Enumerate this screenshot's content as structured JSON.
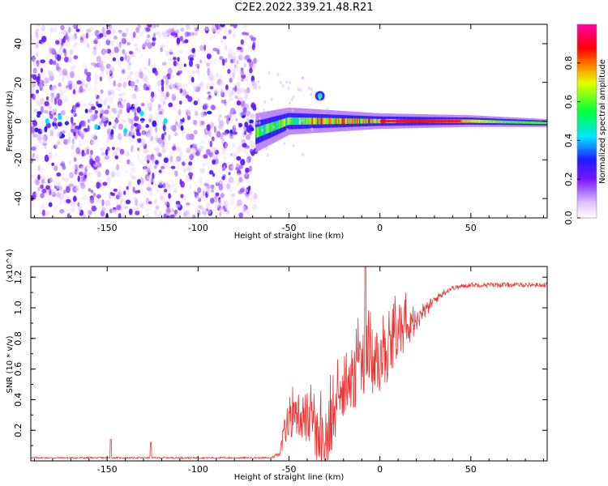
{
  "title": "C2E2.2022.339.21.48.R21",
  "chart_data": [
    {
      "type": "heatmap",
      "xlabel": "Height of straight line (km)",
      "ylabel": "Frequency (Hz)",
      "xlim": [
        -192,
        92
      ],
      "ylim": [
        -50,
        50
      ],
      "xticks": [
        -150,
        -100,
        -50,
        0,
        50
      ],
      "yticks": [
        -40,
        -20,
        0,
        20,
        40
      ],
      "colorbar": {
        "label": "Normalized spectral amplitude",
        "range": [
          0.0,
          1.0
        ],
        "ticks": [
          0.0,
          0.2,
          0.4,
          0.6,
          0.8
        ],
        "colormap": "rainbow (white-violet-blue-cyan-green-yellow-red-magenta)"
      },
      "structure": {
        "noisy_region_x": [
          -192,
          -68
        ],
        "central_band_center_hz": [
          [
            -68,
            -6
          ],
          [
            -50,
            0
          ],
          [
            -30,
            0
          ],
          [
            0,
            0
          ],
          [
            50,
            0
          ],
          [
            92,
            -1
          ]
        ],
        "central_band_halfwidth_hz": [
          [
            -68,
            10
          ],
          [
            -50,
            7
          ],
          [
            0,
            4
          ],
          [
            50,
            3
          ],
          [
            92,
            2
          ]
        ],
        "side_blob": {
          "x": -33,
          "y": 13
        }
      }
    },
    {
      "type": "line",
      "xlabel": "Height of straight line (km)",
      "ylabel": "SNR (10 * v/v)",
      "y_multiplier": "(x10^4)",
      "xlim": [
        -192,
        92
      ],
      "ylim": [
        0,
        1.27
      ],
      "xticks": [
        -150,
        -100,
        -50,
        0,
        50
      ],
      "yticks": [
        0.2,
        0.4,
        0.6,
        0.8,
        1.0,
        1.2
      ],
      "color": "#ee3333",
      "envelope_baseline": [
        [
          -192,
          0.02
        ],
        [
          -60,
          0.02
        ],
        [
          -55,
          0.05
        ],
        [
          -50,
          0.25
        ],
        [
          -45,
          0.3
        ],
        [
          -40,
          0.28
        ],
        [
          -35,
          0.15
        ],
        [
          -30,
          0.1
        ],
        [
          -25,
          0.25
        ],
        [
          -20,
          0.4
        ],
        [
          -15,
          0.5
        ],
        [
          -10,
          0.55
        ],
        [
          -5,
          0.6
        ],
        [
          0,
          0.65
        ],
        [
          5,
          0.7
        ],
        [
          10,
          0.78
        ],
        [
          15,
          0.85
        ],
        [
          20,
          0.92
        ],
        [
          25,
          0.98
        ],
        [
          30,
          1.05
        ],
        [
          35,
          1.1
        ],
        [
          40,
          1.13
        ],
        [
          50,
          1.15
        ],
        [
          92,
          1.15
        ]
      ],
      "envelope_spread": [
        [
          -192,
          0.01
        ],
        [
          -60,
          0.01
        ],
        [
          -55,
          0.04
        ],
        [
          -50,
          0.2
        ],
        [
          -40,
          0.35
        ],
        [
          -30,
          0.35
        ],
        [
          -20,
          0.4
        ],
        [
          -10,
          0.45
        ],
        [
          0,
          0.4
        ],
        [
          10,
          0.3
        ],
        [
          20,
          0.15
        ],
        [
          30,
          0.06
        ],
        [
          40,
          0.03
        ],
        [
          92,
          0.03
        ]
      ],
      "spikes": [
        [
          -148,
          0.14
        ],
        [
          -126,
          0.12
        ],
        [
          -8,
          1.27
        ]
      ]
    }
  ]
}
